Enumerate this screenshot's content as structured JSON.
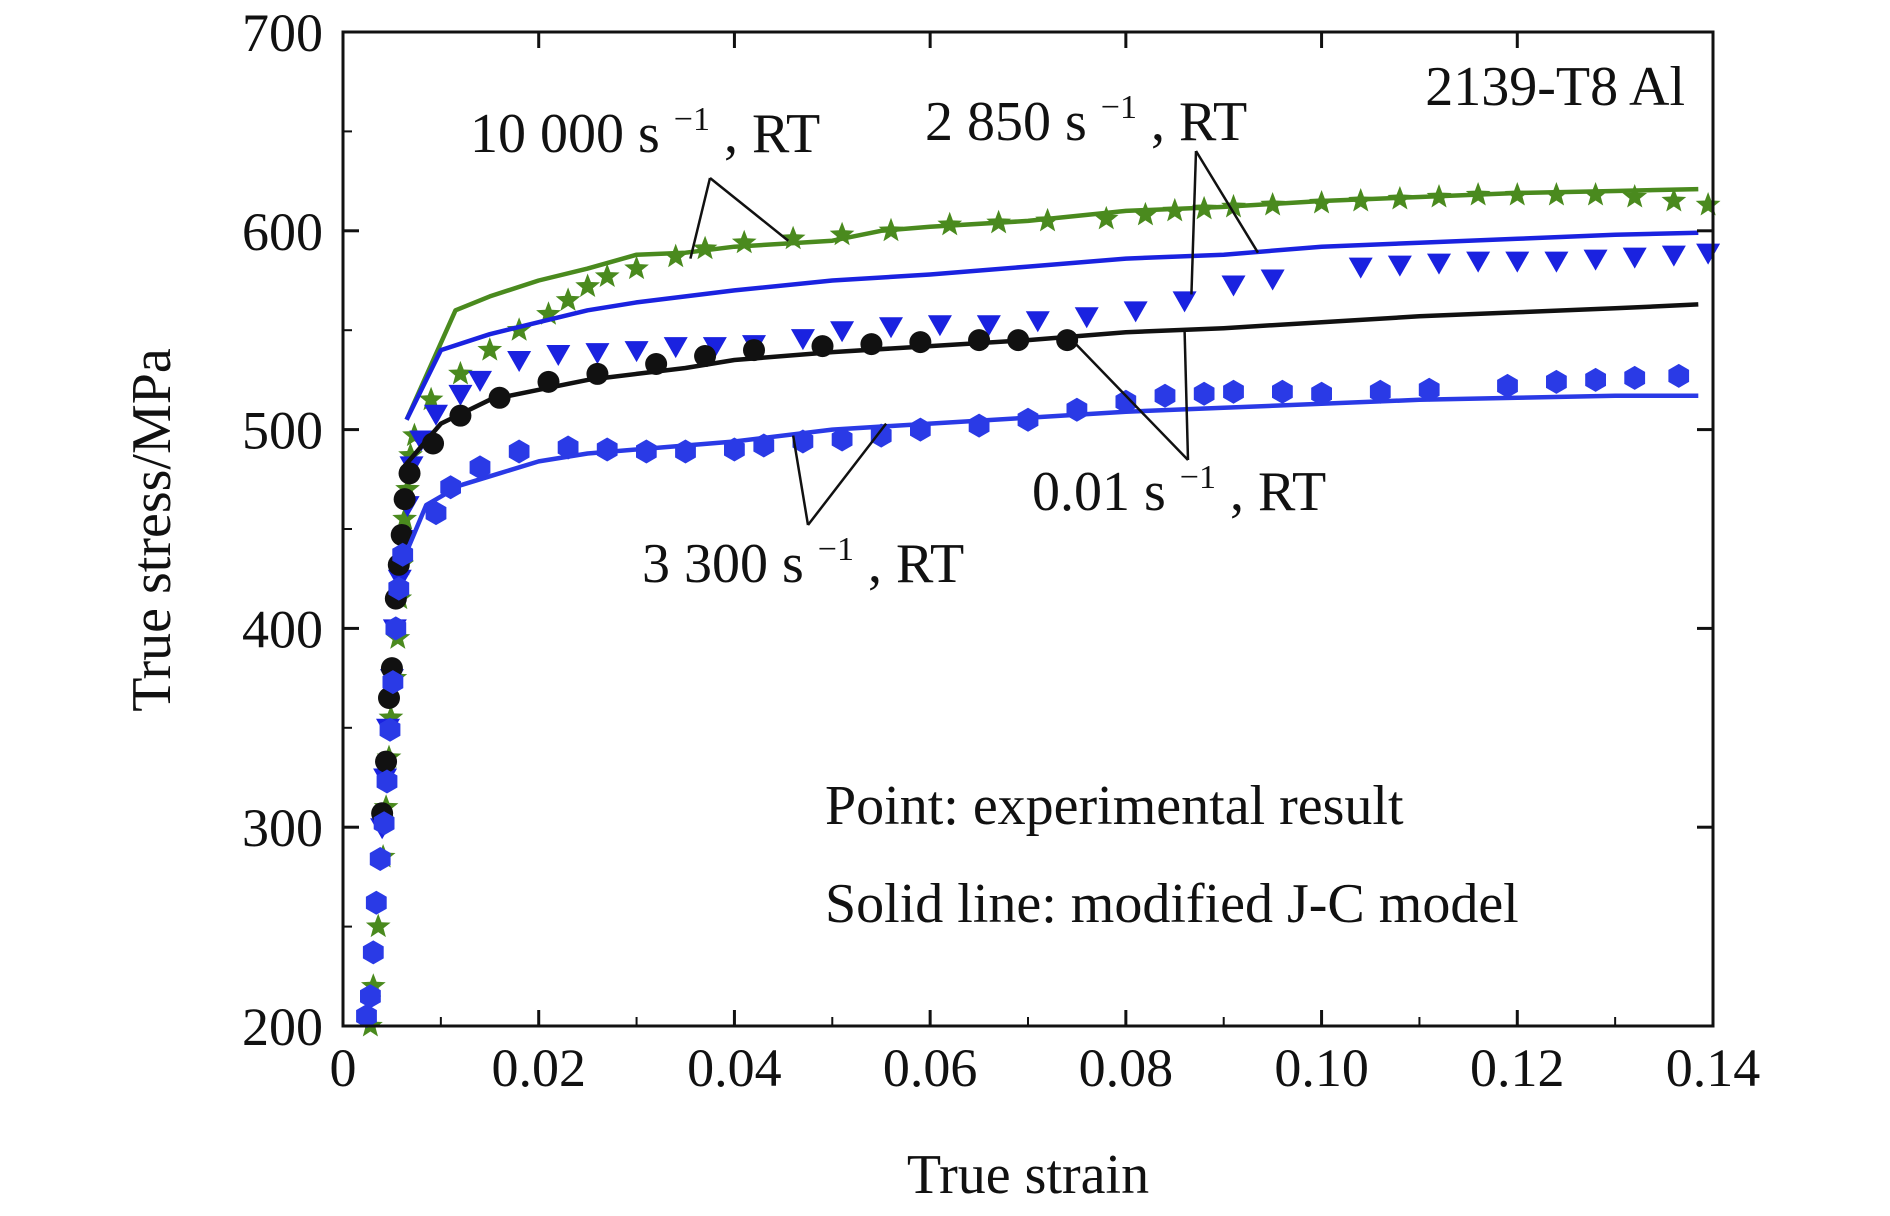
{
  "chart_data": {
    "type": "line",
    "title": "",
    "material_label": "2139-T8 Al",
    "xlabel": "True strain",
    "ylabel": "True stress/MPa",
    "xlim": [
      0,
      0.14
    ],
    "ylim": [
      200,
      700
    ],
    "x_ticks": [
      {
        "value": 0,
        "label": "0"
      },
      {
        "value": 0.02,
        "label": "0.02"
      },
      {
        "value": 0.04,
        "label": "0.04"
      },
      {
        "value": 0.06,
        "label": "0.06"
      },
      {
        "value": 0.08,
        "label": "0.08"
      },
      {
        "value": 0.1,
        "label": "0.10"
      },
      {
        "value": 0.12,
        "label": "0.12"
      },
      {
        "value": 0.14,
        "label": "0.14"
      }
    ],
    "y_ticks": [
      {
        "value": 200,
        "label": "200"
      },
      {
        "value": 300,
        "label": "300"
      },
      {
        "value": 400,
        "label": "400"
      },
      {
        "value": 500,
        "label": "500"
      },
      {
        "value": 600,
        "label": "600"
      },
      {
        "value": 700,
        "label": "700"
      }
    ],
    "grid": false,
    "legend_notes": [
      "Point: experimental result",
      "Solid line: modified J-C model"
    ],
    "series": [
      {
        "rate": "10000",
        "label_main": "10 000 s",
        "label_sup": "−1",
        "label_tail": ", RT",
        "color": "#4a8a1e",
        "marker": "star",
        "model": [
          [
            0.0065,
            505
          ],
          [
            0.0115,
            560
          ],
          [
            0.015,
            567
          ],
          [
            0.02,
            575
          ],
          [
            0.025,
            581
          ],
          [
            0.03,
            588
          ],
          [
            0.035,
            589
          ],
          [
            0.04,
            592
          ],
          [
            0.05,
            595
          ],
          [
            0.055,
            600
          ],
          [
            0.06,
            602
          ],
          [
            0.07,
            605
          ],
          [
            0.08,
            610
          ],
          [
            0.09,
            612
          ],
          [
            0.1,
            615
          ],
          [
            0.11,
            617
          ],
          [
            0.12,
            619
          ],
          [
            0.13,
            620
          ],
          [
            0.1385,
            621
          ]
        ],
        "points": [
          [
            0.0028,
            200
          ],
          [
            0.0031,
            220
          ],
          [
            0.0036,
            250
          ],
          [
            0.0041,
            285
          ],
          [
            0.0044,
            310
          ],
          [
            0.0047,
            335
          ],
          [
            0.0049,
            355
          ],
          [
            0.0053,
            375
          ],
          [
            0.0056,
            395
          ],
          [
            0.0058,
            415
          ],
          [
            0.006,
            432
          ],
          [
            0.0063,
            455
          ],
          [
            0.0066,
            470
          ],
          [
            0.0069,
            487
          ],
          [
            0.0073,
            497
          ],
          [
            0.009,
            515
          ],
          [
            0.012,
            528
          ],
          [
            0.015,
            540
          ],
          [
            0.018,
            550
          ],
          [
            0.021,
            558
          ],
          [
            0.023,
            565
          ],
          [
            0.025,
            572
          ],
          [
            0.027,
            577
          ],
          [
            0.03,
            581
          ],
          [
            0.034,
            587
          ],
          [
            0.037,
            591
          ],
          [
            0.041,
            594
          ],
          [
            0.046,
            596
          ],
          [
            0.051,
            598
          ],
          [
            0.056,
            600
          ],
          [
            0.062,
            603
          ],
          [
            0.067,
            604
          ],
          [
            0.072,
            605
          ],
          [
            0.078,
            606
          ],
          [
            0.082,
            608
          ],
          [
            0.085,
            610
          ],
          [
            0.088,
            611
          ],
          [
            0.091,
            612
          ],
          [
            0.095,
            613
          ],
          [
            0.1,
            614
          ],
          [
            0.104,
            615
          ],
          [
            0.108,
            616
          ],
          [
            0.112,
            617
          ],
          [
            0.116,
            618
          ],
          [
            0.12,
            618
          ],
          [
            0.124,
            618
          ],
          [
            0.128,
            618
          ],
          [
            0.132,
            617
          ],
          [
            0.136,
            615
          ],
          [
            0.1395,
            613
          ]
        ]
      },
      {
        "rate": "2850",
        "label_main": "2 850 s",
        "label_sup": "−1",
        "label_tail": ", RT",
        "color": "#1a22e0",
        "marker": "triangle-down",
        "model": [
          [
            0.0065,
            505
          ],
          [
            0.01,
            540
          ],
          [
            0.015,
            548
          ],
          [
            0.02,
            554
          ],
          [
            0.025,
            560
          ],
          [
            0.03,
            564
          ],
          [
            0.04,
            570
          ],
          [
            0.05,
            575
          ],
          [
            0.06,
            578
          ],
          [
            0.07,
            582
          ],
          [
            0.08,
            586
          ],
          [
            0.09,
            588
          ],
          [
            0.1,
            592
          ],
          [
            0.11,
            594
          ],
          [
            0.12,
            596
          ],
          [
            0.13,
            598
          ],
          [
            0.1385,
            599
          ]
        ],
        "points": [
          [
            0.004,
            300
          ],
          [
            0.0043,
            325
          ],
          [
            0.0046,
            350
          ],
          [
            0.005,
            375
          ],
          [
            0.0053,
            400
          ],
          [
            0.0058,
            425
          ],
          [
            0.0062,
            445
          ],
          [
            0.0066,
            462
          ],
          [
            0.007,
            482
          ],
          [
            0.008,
            495
          ],
          [
            0.0095,
            508
          ],
          [
            0.012,
            518
          ],
          [
            0.014,
            525
          ],
          [
            0.018,
            535
          ],
          [
            0.022,
            538
          ],
          [
            0.026,
            539
          ],
          [
            0.03,
            540
          ],
          [
            0.034,
            542
          ],
          [
            0.038,
            542
          ],
          [
            0.042,
            543
          ],
          [
            0.047,
            546
          ],
          [
            0.051,
            550
          ],
          [
            0.056,
            552
          ],
          [
            0.061,
            553
          ],
          [
            0.066,
            553
          ],
          [
            0.071,
            555
          ],
          [
            0.076,
            557
          ],
          [
            0.081,
            560
          ],
          [
            0.086,
            565
          ],
          [
            0.091,
            573
          ],
          [
            0.095,
            576
          ],
          [
            0.104,
            582
          ],
          [
            0.108,
            583
          ],
          [
            0.112,
            584
          ],
          [
            0.116,
            585
          ],
          [
            0.12,
            585
          ],
          [
            0.124,
            585
          ],
          [
            0.128,
            586
          ],
          [
            0.132,
            587
          ],
          [
            0.136,
            588
          ],
          [
            0.1395,
            589
          ]
        ]
      },
      {
        "rate": "0.01",
        "label_main": "0.01 s",
        "label_sup": "−1",
        "label_tail": ", RT",
        "color": "#111111",
        "marker": "circle",
        "model": [
          [
            0.006,
            480
          ],
          [
            0.01,
            503
          ],
          [
            0.015,
            515
          ],
          [
            0.02,
            520
          ],
          [
            0.025,
            525
          ],
          [
            0.03,
            528
          ],
          [
            0.035,
            531
          ],
          [
            0.04,
            535
          ],
          [
            0.05,
            539
          ],
          [
            0.06,
            542
          ],
          [
            0.07,
            545
          ],
          [
            0.08,
            549
          ],
          [
            0.09,
            551
          ],
          [
            0.1,
            554
          ],
          [
            0.11,
            557
          ],
          [
            0.12,
            559
          ],
          [
            0.13,
            561
          ],
          [
            0.1385,
            563
          ]
        ],
        "points": [
          [
            0.004,
            307
          ],
          [
            0.0044,
            333
          ],
          [
            0.0047,
            365
          ],
          [
            0.005,
            380
          ],
          [
            0.0054,
            415
          ],
          [
            0.0057,
            432
          ],
          [
            0.006,
            447
          ],
          [
            0.0063,
            465
          ],
          [
            0.0068,
            478
          ],
          [
            0.0092,
            493
          ],
          [
            0.012,
            507
          ],
          [
            0.016,
            516
          ],
          [
            0.021,
            524
          ],
          [
            0.026,
            528
          ],
          [
            0.032,
            533
          ],
          [
            0.037,
            537
          ],
          [
            0.042,
            540
          ],
          [
            0.049,
            542
          ],
          [
            0.054,
            543
          ],
          [
            0.059,
            544
          ],
          [
            0.065,
            545
          ],
          [
            0.069,
            545
          ],
          [
            0.074,
            545
          ]
        ]
      },
      {
        "rate": "3300",
        "label_main": "3 300 s",
        "label_sup": "−1",
        "label_tail": ", RT",
        "color": "#2a3ae6",
        "marker": "hexagon",
        "model": [
          [
            0.0062,
            435
          ],
          [
            0.0085,
            462
          ],
          [
            0.012,
            472
          ],
          [
            0.016,
            478
          ],
          [
            0.02,
            484
          ],
          [
            0.025,
            488
          ],
          [
            0.03,
            490
          ],
          [
            0.04,
            494
          ],
          [
            0.05,
            500
          ],
          [
            0.06,
            503
          ],
          [
            0.07,
            506
          ],
          [
            0.08,
            509
          ],
          [
            0.09,
            511
          ],
          [
            0.1,
            513
          ],
          [
            0.11,
            515
          ],
          [
            0.12,
            516
          ],
          [
            0.13,
            517
          ],
          [
            0.1385,
            517
          ]
        ],
        "points": [
          [
            0.0024,
            205
          ],
          [
            0.0028,
            215
          ],
          [
            0.0031,
            237
          ],
          [
            0.0034,
            262
          ],
          [
            0.0038,
            284
          ],
          [
            0.0042,
            302
          ],
          [
            0.0045,
            323
          ],
          [
            0.0048,
            349
          ],
          [
            0.0051,
            373
          ],
          [
            0.0054,
            400
          ],
          [
            0.0057,
            420
          ],
          [
            0.0061,
            437
          ],
          [
            0.0095,
            458
          ],
          [
            0.011,
            471
          ],
          [
            0.014,
            481
          ],
          [
            0.018,
            489
          ],
          [
            0.023,
            491
          ],
          [
            0.027,
            490
          ],
          [
            0.031,
            489
          ],
          [
            0.035,
            489
          ],
          [
            0.04,
            490
          ],
          [
            0.043,
            492
          ],
          [
            0.047,
            494
          ],
          [
            0.051,
            495
          ],
          [
            0.055,
            497
          ],
          [
            0.059,
            500
          ],
          [
            0.065,
            502
          ],
          [
            0.07,
            505
          ],
          [
            0.075,
            510
          ],
          [
            0.08,
            514
          ],
          [
            0.084,
            517
          ],
          [
            0.088,
            518
          ],
          [
            0.091,
            519
          ],
          [
            0.096,
            519
          ],
          [
            0.1,
            518
          ],
          [
            0.106,
            519
          ],
          [
            0.111,
            520
          ],
          [
            0.119,
            522
          ],
          [
            0.124,
            524
          ],
          [
            0.128,
            525
          ],
          [
            0.132,
            526
          ],
          [
            0.1365,
            527
          ]
        ]
      }
    ]
  }
}
